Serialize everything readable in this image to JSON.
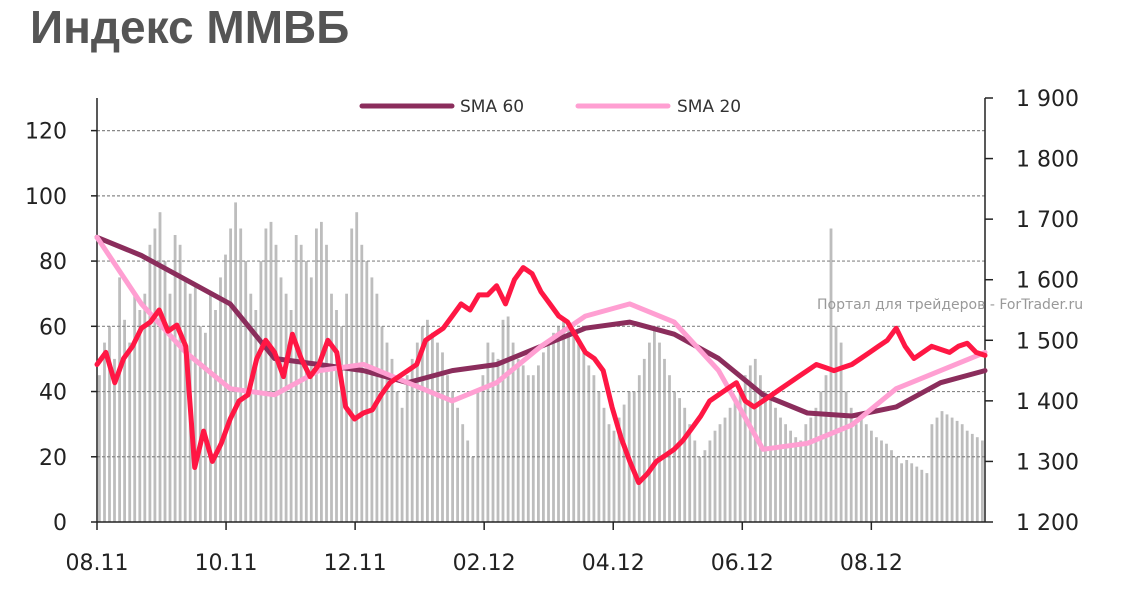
{
  "page": {
    "title": "Индекс ММВБ",
    "watermark": "Портал для трейдеров - ForTrader.ru"
  },
  "chart_data": {
    "type": "line",
    "title": "Индекс ММВБ",
    "x_tick_labels": [
      "08.11",
      "10.11",
      "12.11",
      "02.12",
      "04.12",
      "06.12",
      "08.12"
    ],
    "left_axis": {
      "min": 0,
      "max": 130,
      "ticks": [
        0,
        20,
        40,
        60,
        80,
        100,
        120
      ]
    },
    "right_axis": {
      "min": 1200,
      "max": 1900,
      "ticks": [
        "1 200",
        "1 300",
        "1 400",
        "1 500",
        "1 600",
        "1 700",
        "1 800",
        "1 900"
      ]
    },
    "grid": "horizontal dashed",
    "legend_position": "top-center",
    "colors": {
      "index": "#ff1744",
      "sma60": "#8b2d5c",
      "sma20": "#ff9fd2",
      "volume": "#bdbdbd",
      "grid": "#888888"
    },
    "index_series": {
      "axis": "right",
      "x": [
        0,
        0.01,
        0.02,
        0.03,
        0.04,
        0.05,
        0.06,
        0.07,
        0.08,
        0.09,
        0.1,
        0.11,
        0.12,
        0.13,
        0.14,
        0.15,
        0.16,
        0.17,
        0.18,
        0.19,
        0.2,
        0.21,
        0.22,
        0.23,
        0.24,
        0.25,
        0.26,
        0.27,
        0.28,
        0.29,
        0.3,
        0.31,
        0.32,
        0.33,
        0.34,
        0.35,
        0.36,
        0.37,
        0.38,
        0.39,
        0.4,
        0.41,
        0.42,
        0.43,
        0.44,
        0.45,
        0.46,
        0.47,
        0.48,
        0.49,
        0.5,
        0.51,
        0.52,
        0.53,
        0.54,
        0.55,
        0.56,
        0.57,
        0.58,
        0.59,
        0.6,
        0.61,
        0.62,
        0.63,
        0.64,
        0.65,
        0.66,
        0.67,
        0.68,
        0.69,
        0.7,
        0.71,
        0.72,
        0.73,
        0.74,
        0.75,
        0.76,
        0.77,
        0.78,
        0.79,
        0.8,
        0.81,
        0.82,
        0.83,
        0.84,
        0.85,
        0.86,
        0.87,
        0.88,
        0.89,
        0.9,
        0.91,
        0.92,
        0.93,
        0.94,
        0.95,
        0.96,
        0.97,
        0.98,
        0.99,
        1.0
      ],
      "values": [
        1460,
        1480,
        1430,
        1470,
        1490,
        1520,
        1530,
        1550,
        1515,
        1525,
        1490,
        1290,
        1350,
        1300,
        1330,
        1370,
        1400,
        1410,
        1470,
        1500,
        1480,
        1440,
        1510,
        1470,
        1440,
        1460,
        1500,
        1480,
        1390,
        1370,
        1380,
        1385,
        1410,
        1430,
        1440,
        1450,
        1460,
        1500,
        1510,
        1520,
        1540,
        1560,
        1550,
        1575,
        1575,
        1590,
        1560,
        1600,
        1620,
        1610,
        1580,
        1560,
        1540,
        1530,
        1505,
        1480,
        1470,
        1450,
        1390,
        1340,
        1300,
        1265,
        1280,
        1300,
        1310,
        1320,
        1335,
        1355,
        1375,
        1400,
        1410,
        1420,
        1430,
        1400,
        1390,
        1400,
        1410,
        1420,
        1430,
        1440,
        1450,
        1460,
        1455,
        1450,
        1455,
        1460,
        1470,
        1480,
        1490,
        1500,
        1520,
        1490,
        1470,
        1480,
        1490,
        1485,
        1480,
        1490,
        1495,
        1480,
        1475
      ]
    },
    "series": [
      {
        "name": "SMA 60",
        "axis": "right",
        "x": [
          0,
          0.05,
          0.1,
          0.15,
          0.2,
          0.25,
          0.3,
          0.35,
          0.4,
          0.45,
          0.5,
          0.55,
          0.6,
          0.65,
          0.7,
          0.75,
          0.8,
          0.85,
          0.9,
          0.95,
          1.0
        ],
        "values": [
          1670,
          1640,
          1600,
          1560,
          1470,
          1460,
          1450,
          1430,
          1450,
          1460,
          1490,
          1520,
          1530,
          1510,
          1470,
          1410,
          1380,
          1375,
          1390,
          1430,
          1450
        ]
      },
      {
        "name": "SMA 20",
        "axis": "right",
        "x": [
          0,
          0.05,
          0.1,
          0.15,
          0.2,
          0.25,
          0.3,
          0.35,
          0.4,
          0.45,
          0.5,
          0.55,
          0.6,
          0.65,
          0.7,
          0.75,
          0.8,
          0.85,
          0.9,
          0.95,
          1.0
        ],
        "values": [
          1670,
          1560,
          1480,
          1420,
          1410,
          1450,
          1460,
          1430,
          1400,
          1430,
          1490,
          1540,
          1560,
          1530,
          1450,
          1320,
          1330,
          1360,
          1420,
          1450,
          1480
        ]
      }
    ],
    "volume": {
      "axis": "left",
      "note": "grey bars, one per day",
      "values": [
        45,
        55,
        60,
        50,
        75,
        62,
        55,
        70,
        65,
        70,
        85,
        90,
        95,
        80,
        70,
        88,
        85,
        75,
        70,
        72,
        60,
        58,
        70,
        65,
        75,
        82,
        90,
        98,
        90,
        80,
        70,
        65,
        80,
        90,
        92,
        85,
        75,
        70,
        65,
        88,
        85,
        80,
        75,
        90,
        92,
        85,
        70,
        65,
        60,
        70,
        90,
        95,
        85,
        80,
        75,
        70,
        60,
        55,
        50,
        40,
        35,
        45,
        50,
        55,
        60,
        62,
        58,
        55,
        52,
        45,
        40,
        35,
        30,
        25,
        20,
        40,
        45,
        55,
        52,
        50,
        62,
        63,
        55,
        50,
        48,
        45,
        45,
        48,
        52,
        55,
        58,
        60,
        62,
        60,
        58,
        56,
        52,
        48,
        45,
        40,
        35,
        30,
        28,
        32,
        36,
        40,
        40,
        45,
        50,
        55,
        60,
        55,
        50,
        45,
        40,
        38,
        35,
        30,
        25,
        20,
        22,
        25,
        28,
        30,
        32,
        35,
        38,
        40,
        45,
        48,
        50,
        45,
        40,
        38,
        35,
        32,
        30,
        28,
        26,
        25,
        30,
        32,
        35,
        40,
        45,
        90,
        60,
        55,
        40,
        35,
        30,
        32,
        30,
        28,
        26,
        25,
        24,
        22,
        20,
        18,
        19,
        18,
        17,
        16,
        15,
        30,
        32,
        34,
        33,
        32,
        31,
        30,
        28,
        27,
        26,
        25
      ]
    }
  }
}
